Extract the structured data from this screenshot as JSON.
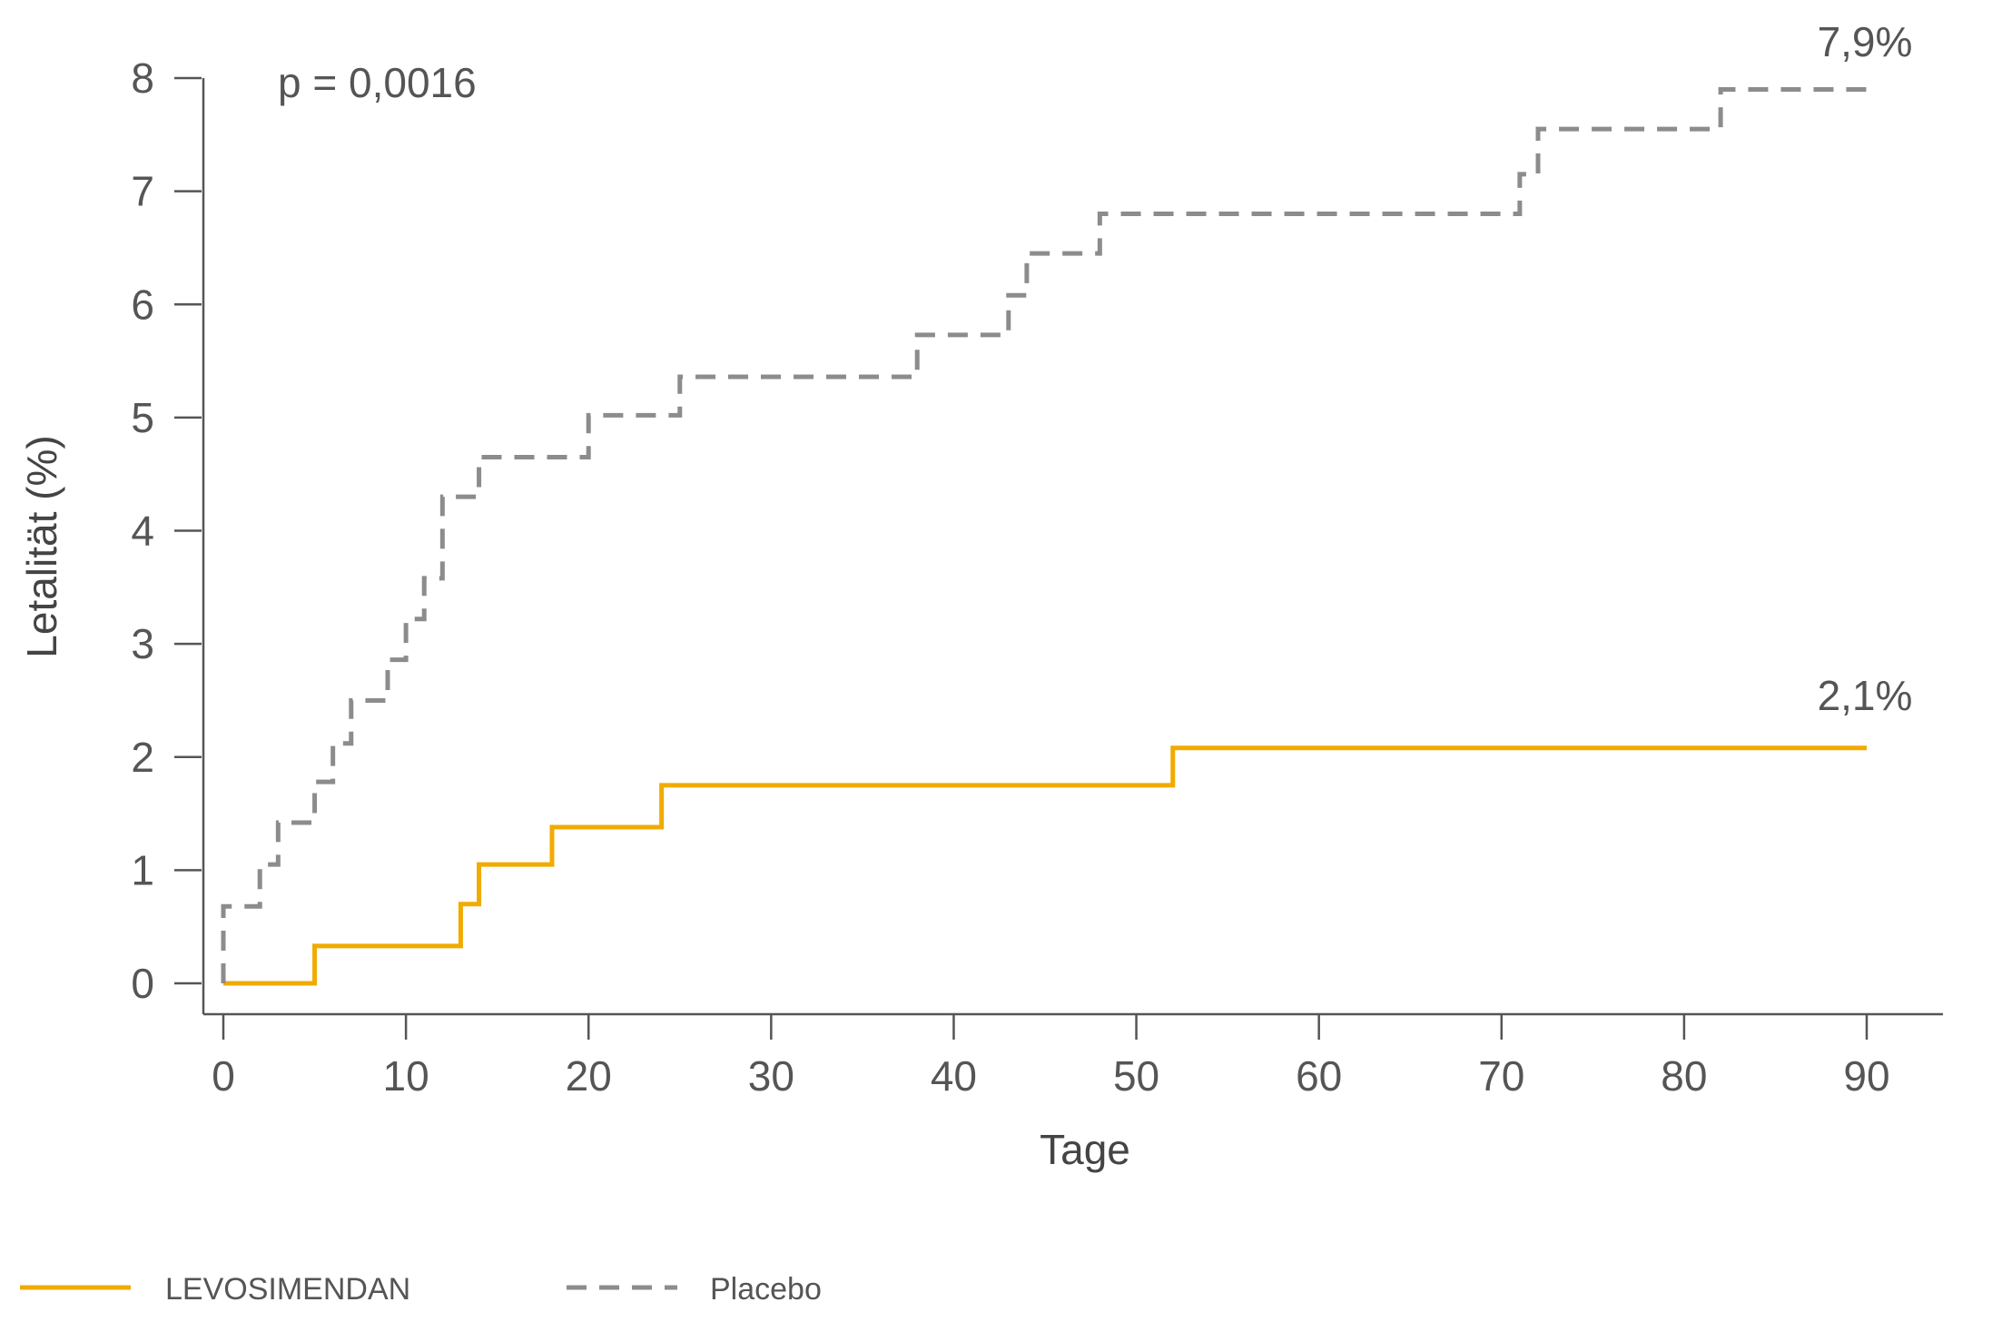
{
  "chart_data": {
    "type": "line",
    "step": true,
    "xlabel": "Tage",
    "ylabel": "Letalität (%)",
    "xlim": [
      0,
      90
    ],
    "ylim": [
      0,
      8
    ],
    "xticks": [
      0,
      10,
      20,
      30,
      40,
      50,
      60,
      70,
      80,
      90
    ],
    "yticks": [
      0,
      1,
      2,
      3,
      4,
      5,
      6,
      7,
      8
    ],
    "grid": false,
    "legend_position": "bottom-left",
    "annotation": "p = 0,0016",
    "series": [
      {
        "name": "LEVOSIMENDAN",
        "color": "#f0ab00",
        "style": "solid",
        "end_label": "2,1%",
        "x": [
          0,
          5,
          13,
          14,
          18,
          24,
          52,
          90
        ],
        "y": [
          0,
          0.33,
          0.7,
          1.05,
          1.38,
          1.75,
          2.08,
          2.08
        ]
      },
      {
        "name": "Placebo",
        "color": "#8c8c8c",
        "style": "dashed",
        "end_label": "7,9%",
        "x": [
          0,
          2,
          3,
          5,
          6,
          7,
          9,
          10,
          11,
          12,
          14,
          20,
          25,
          38,
          43,
          44,
          48,
          71,
          72,
          82,
          90
        ],
        "y": [
          0.68,
          1.05,
          1.42,
          1.78,
          2.12,
          2.5,
          2.86,
          3.22,
          3.58,
          4.3,
          4.65,
          5.02,
          5.36,
          5.73,
          6.08,
          6.45,
          6.8,
          7.15,
          7.55,
          7.9,
          7.9
        ]
      }
    ]
  }
}
